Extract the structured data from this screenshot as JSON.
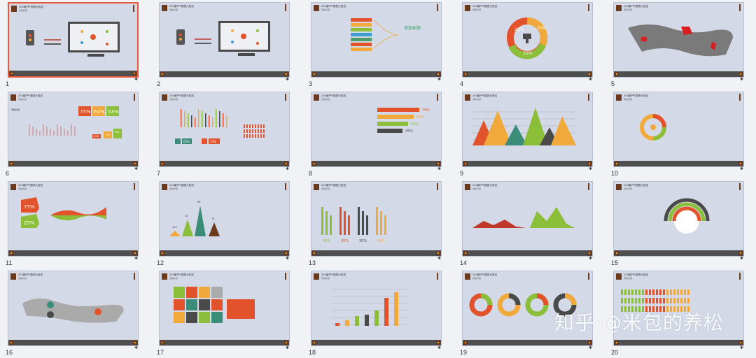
{
  "slide_title": "200套PPT图表大放送",
  "slide_subtitle": "添加标题",
  "watermark": "知乎 @米包的养松",
  "slides": [
    {
      "num": "1",
      "selected": true
    },
    {
      "num": "2"
    },
    {
      "num": "3",
      "extra": "添加标题"
    },
    {
      "num": "4",
      "labels": [
        "28%",
        "30%",
        "35%"
      ]
    },
    {
      "num": "5"
    },
    {
      "num": "6",
      "labels": [
        "75%",
        "64%",
        "53%",
        "258",
        "178",
        "382",
        "0"
      ]
    },
    {
      "num": "7",
      "labels": [
        "65%",
        "55%"
      ]
    },
    {
      "num": "8",
      "labels": [
        "75%",
        "60%",
        "55%",
        "45%"
      ]
    },
    {
      "num": "9"
    },
    {
      "num": "10"
    },
    {
      "num": "11",
      "labels": [
        "75%",
        "25%"
      ]
    },
    {
      "num": "12",
      "labels": [
        "125",
        "78",
        "99",
        "74"
      ]
    },
    {
      "num": "13",
      "labels": [
        "35%",
        "35%",
        "35%",
        "35%"
      ]
    },
    {
      "num": "14"
    },
    {
      "num": "15"
    },
    {
      "num": "16"
    },
    {
      "num": "17"
    },
    {
      "num": "18"
    },
    {
      "num": "19"
    },
    {
      "num": "20"
    }
  ]
}
